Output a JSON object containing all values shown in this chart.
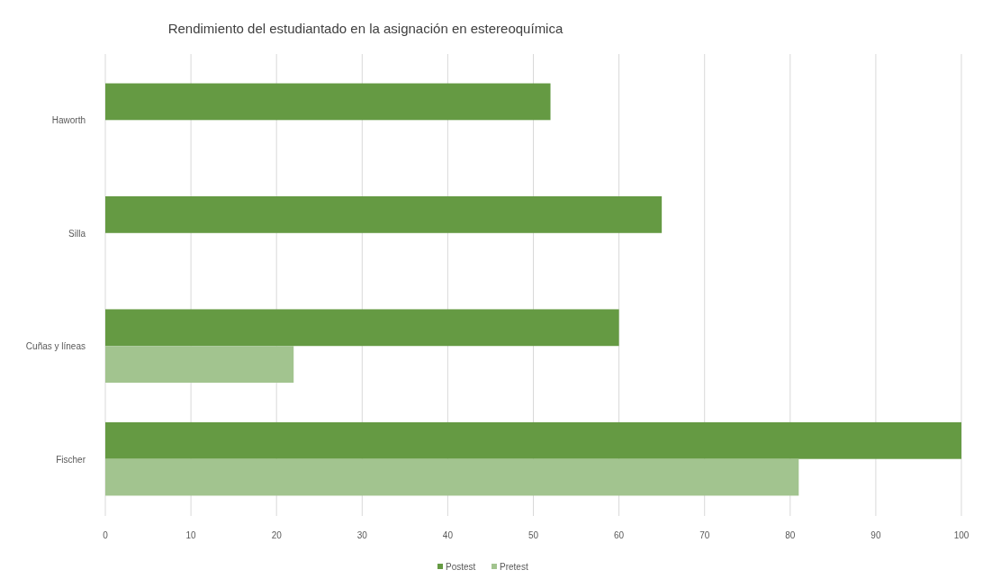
{
  "chart_data": {
    "type": "bar",
    "orientation": "horizontal",
    "title": "Rendimiento del estudiantado en la asignación en estereoquímica",
    "categories": [
      "Haworth",
      "Silla",
      "Cuñas y líneas",
      "Fischer"
    ],
    "series": [
      {
        "name": "Postest",
        "color": "#659a43",
        "values": [
          52,
          65,
          60,
          100
        ]
      },
      {
        "name": "Pretest",
        "color": "#a2c48f",
        "values": [
          0,
          0,
          22,
          81
        ]
      }
    ],
    "xlim": [
      0,
      100
    ],
    "xticks": [
      0,
      10,
      20,
      30,
      40,
      50,
      60,
      70,
      80,
      90,
      100
    ],
    "grid": "x",
    "legend": "bottom"
  }
}
